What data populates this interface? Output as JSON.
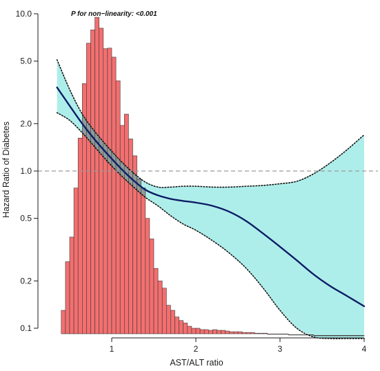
{
  "chart_data": {
    "type": "line",
    "title": "",
    "annotation": "P for non−linearity: <0.001",
    "xlabel": "AST/ALT ratio",
    "ylabel": "Hazard Ratio of  Diabetes",
    "xlim": [
      0.25,
      4.1
    ],
    "ylim": [
      0.085,
      11.0
    ],
    "y_scale": "log",
    "x_ticks": [
      1,
      2,
      3,
      4
    ],
    "y_ticks": [
      0.1,
      0.2,
      0.5,
      1.0,
      2.0,
      5.0,
      10.0
    ],
    "y_tick_labels": [
      "0.1",
      "0.2",
      "0.5",
      "1.0",
      "2.0",
      "5.0",
      "10.0"
    ],
    "reference_line": {
      "y": 1.0,
      "style": "dashed"
    },
    "series": [
      {
        "type": "line",
        "color": "#0d1d66",
        "x": [
          0.35,
          0.5,
          0.65,
          0.8,
          0.95,
          1.1,
          1.25,
          1.4,
          1.55,
          1.7,
          1.85,
          2.0,
          2.2,
          2.4,
          2.6,
          2.8,
          3.0,
          3.2,
          3.4,
          3.6,
          3.8,
          4.0
        ],
        "y": [
          3.4,
          2.6,
          2.0,
          1.58,
          1.28,
          1.05,
          0.88,
          0.76,
          0.7,
          0.665,
          0.645,
          0.63,
          0.6,
          0.55,
          0.48,
          0.4,
          0.33,
          0.27,
          0.22,
          0.185,
          0.16,
          0.138
        ]
      },
      {
        "type": "ci_band",
        "color": "#aeeeea",
        "x": [
          0.35,
          0.5,
          0.65,
          0.8,
          0.95,
          1.1,
          1.25,
          1.4,
          1.55,
          1.7,
          1.85,
          2.0,
          2.2,
          2.4,
          2.6,
          2.8,
          3.0,
          3.2,
          3.4,
          3.6,
          3.8,
          4.0
        ],
        "lower": [
          2.35,
          2.1,
          1.75,
          1.42,
          1.15,
          0.95,
          0.8,
          0.68,
          0.6,
          0.52,
          0.46,
          0.42,
          0.36,
          0.3,
          0.24,
          0.18,
          0.13,
          0.1,
          0.088,
          0.086,
          0.086,
          0.086
        ],
        "upper": [
          5.1,
          3.3,
          2.3,
          1.78,
          1.43,
          1.17,
          0.98,
          0.85,
          0.79,
          0.79,
          0.8,
          0.8,
          0.79,
          0.79,
          0.8,
          0.81,
          0.83,
          0.86,
          0.96,
          1.13,
          1.37,
          1.7
        ]
      },
      {
        "type": "histogram",
        "color": "#f36f6f",
        "bin_starts": [
          0.4,
          0.45,
          0.5,
          0.55,
          0.6,
          0.65,
          0.7,
          0.75,
          0.8,
          0.85,
          0.9,
          0.95,
          1.0,
          1.05,
          1.1,
          1.15,
          1.2,
          1.25,
          1.3,
          1.35,
          1.4,
          1.45,
          1.5,
          1.55,
          1.6,
          1.65,
          1.7,
          1.75,
          1.8,
          1.85,
          1.9,
          1.95,
          2.0,
          2.05,
          2.1,
          2.15,
          2.2,
          2.25,
          2.3,
          2.35,
          2.4,
          2.45,
          2.5,
          2.55,
          2.6,
          2.65,
          2.7,
          2.75,
          2.8,
          2.85,
          2.9,
          2.95,
          3.0,
          3.05,
          3.1,
          3.15,
          3.2,
          3.25,
          3.3,
          3.35,
          3.4,
          3.45,
          3.5,
          3.55,
          3.6,
          3.65,
          3.7,
          3.75,
          3.8,
          3.85,
          3.9,
          3.95
        ],
        "bin_width": 0.05,
        "heights": [
          0.13,
          0.265,
          0.38,
          0.78,
          1.62,
          3.6,
          6.5,
          7.9,
          9.5,
          8.1,
          6.0,
          6.05,
          5.3,
          3.75,
          1.95,
          2.3,
          1.6,
          1.25,
          0.89,
          0.78,
          0.5,
          0.37,
          0.24,
          0.2,
          0.18,
          0.14,
          0.13,
          0.118,
          0.112,
          0.108,
          0.103,
          0.1,
          0.1,
          0.098,
          0.098,
          0.097,
          0.098,
          0.097,
          0.097,
          0.096,
          0.095,
          0.095,
          0.095,
          0.094,
          0.094,
          0.094,
          0.093,
          0.093,
          0.093,
          0.092,
          0.092,
          0.092,
          0.092,
          0.092,
          0.091,
          0.091,
          0.091,
          0.091,
          0.091,
          0.091,
          0.09,
          0.09,
          0.09,
          0.09,
          0.09,
          0.09,
          0.09,
          0.09,
          0.09,
          0.09,
          0.09,
          0.09
        ]
      }
    ]
  }
}
